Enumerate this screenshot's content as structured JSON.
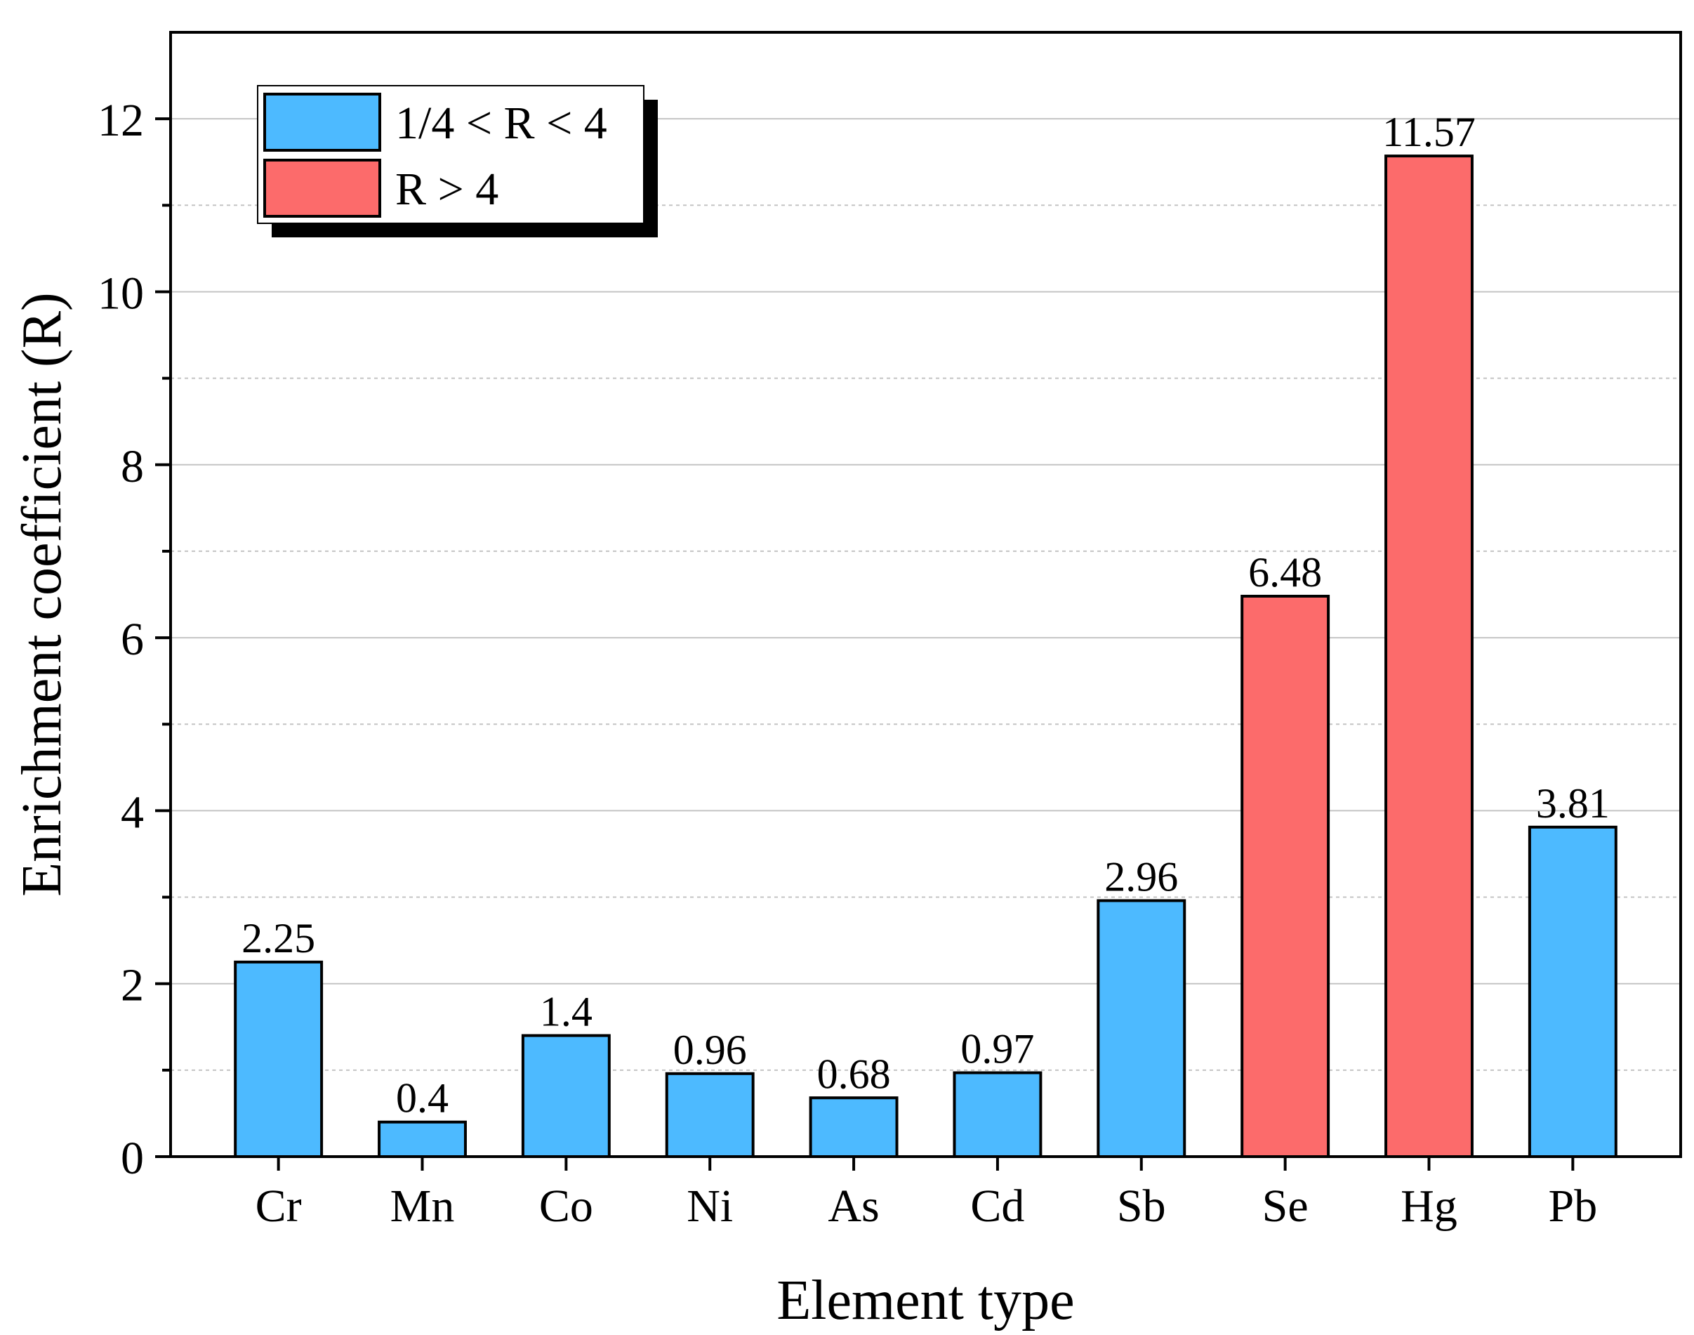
{
  "chart_data": {
    "type": "bar",
    "title": "",
    "xlabel": "Element type",
    "ylabel": "Enrichment coefficient (R)",
    "categories": [
      "Cr",
      "Mn",
      "Co",
      "Ni",
      "As",
      "Cd",
      "Sb",
      "Se",
      "Hg",
      "Pb"
    ],
    "values": [
      2.25,
      0.4,
      1.4,
      0.96,
      0.68,
      0.97,
      2.96,
      6.48,
      11.57,
      3.81
    ],
    "value_labels": [
      "2.25",
      "0.4",
      "1.4",
      "0.96",
      "0.68",
      "0.97",
      "2.96",
      "6.48",
      "11.57",
      "3.81"
    ],
    "groups": [
      "low",
      "low",
      "low",
      "low",
      "low",
      "low",
      "low",
      "high",
      "high",
      "low"
    ],
    "ylim": [
      0,
      13
    ],
    "yticks": [
      0,
      2,
      4,
      6,
      8,
      10,
      12
    ],
    "ytick_labels": [
      "0",
      "2",
      "4",
      "6",
      "8",
      "10",
      "12"
    ],
    "grid": true,
    "legend_position": "top-left",
    "legend": [
      {
        "key": "low",
        "label": "1/4 < R < 4",
        "color": "#4dbaff"
      },
      {
        "key": "high",
        "label": "R > 4",
        "color": "#fc6b6b"
      }
    ]
  }
}
